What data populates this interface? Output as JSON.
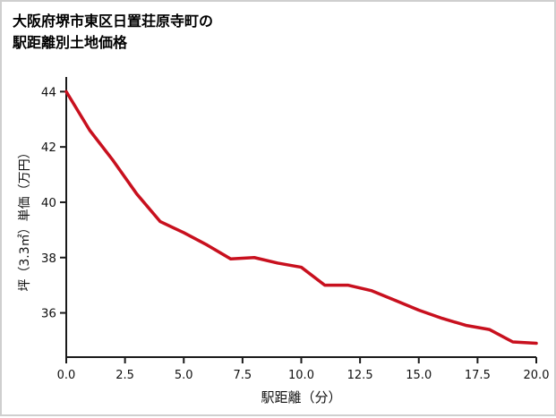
{
  "title": {
    "line1": "大阪府堺市東区日置荘原寺町の",
    "line2": "駅距離別土地価格"
  },
  "chart_data": {
    "type": "line",
    "title": "大阪府堺市東区日置荘原寺町の駅距離別土地価格",
    "xlabel": "駅距離（分）",
    "ylabel": "坪（3.3㎡）単価（万円）",
    "x": [
      0,
      1,
      2,
      3,
      4,
      5,
      6,
      7,
      8,
      9,
      10,
      11,
      12,
      13,
      14,
      15,
      16,
      17,
      18,
      19,
      20
    ],
    "y": [
      44.0,
      42.6,
      41.5,
      40.3,
      39.3,
      38.9,
      38.45,
      37.95,
      38.0,
      37.8,
      37.65,
      37.0,
      37.0,
      36.8,
      36.45,
      36.1,
      35.8,
      35.55,
      35.4,
      34.95,
      34.9
    ],
    "x_ticks": [
      0,
      2.5,
      5,
      7.5,
      10,
      12.5,
      15,
      17.5,
      20
    ],
    "x_tick_labels": [
      "0.0",
      "2.5",
      "5.0",
      "7.5",
      "10.0",
      "12.5",
      "15.0",
      "17.5",
      "20.0"
    ],
    "y_ticks": [
      36,
      38,
      40,
      42,
      44
    ],
    "y_tick_labels": [
      "36",
      "38",
      "40",
      "42",
      "44"
    ],
    "xlim": [
      0,
      20
    ],
    "ylim": [
      34.4,
      44.4
    ],
    "grid": false,
    "legend": "none",
    "line_color": "#c8101e",
    "axis_color": "#1a1a1a"
  }
}
